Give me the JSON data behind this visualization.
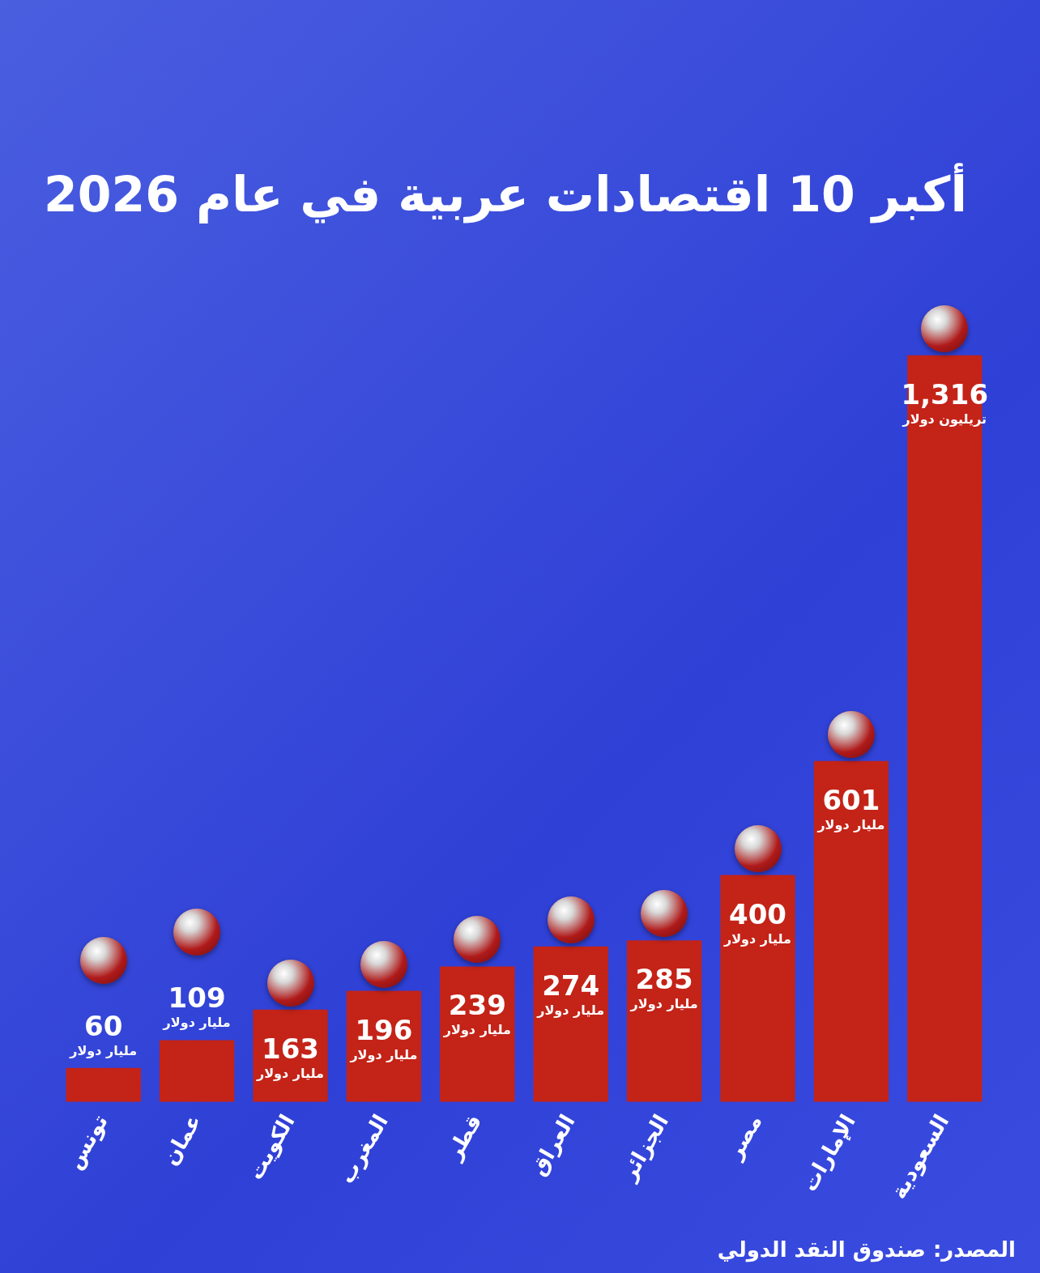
{
  "chart_data": {
    "type": "bar",
    "title": "أكبر 10 اقتصادات عربية في عام 2026",
    "categories": [
      "تونس",
      "عمان",
      "الكويت",
      "المغرب",
      "قطر",
      "العراق",
      "الجزائر",
      "مصر",
      "الإمارات",
      "السعودية"
    ],
    "values": [
      60,
      109,
      163,
      196,
      239,
      274,
      285,
      400,
      601,
      1316
    ],
    "value_labels": [
      "60 مليار دولار",
      "109 مليار دولار",
      "163 مليار دولار",
      "196 مليار دولار",
      "239 مليار دولار",
      "274 مليار دولار",
      "285 مليار دولار",
      "400 مليار دولار",
      "601 مليار دولار",
      "1,316 تريليون دولار"
    ],
    "color": "#c42318",
    "grid": false,
    "legend": false,
    "annotations": [
      "المصدر: صندوق النقد الدولي"
    ]
  }
}
